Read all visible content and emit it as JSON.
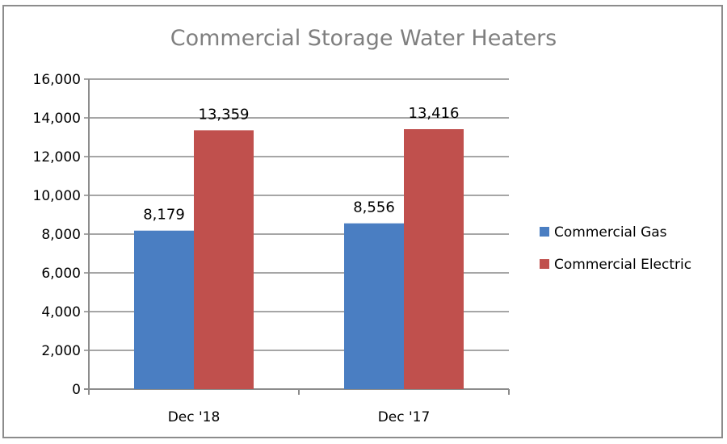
{
  "chart_data": {
    "type": "bar",
    "title": "Commercial Storage Water Heaters",
    "categories": [
      "Dec '18",
      "Dec '17"
    ],
    "series": [
      {
        "name": "Commercial Gas",
        "values": [
          8179,
          8556
        ],
        "labels": [
          "8,179",
          "8,556"
        ],
        "color": "#4a7ec2"
      },
      {
        "name": "Commercial Electric",
        "values": [
          13359,
          13416
        ],
        "labels": [
          "13,359",
          "13,416"
        ],
        "color": "#c0504d"
      }
    ],
    "ylim": [
      0,
      16000
    ],
    "yticks": [
      0,
      2000,
      4000,
      6000,
      8000,
      10000,
      12000,
      14000,
      16000
    ],
    "ytick_labels": [
      "0",
      "2,000",
      "4,000",
      "6,000",
      "8,000",
      "10,000",
      "12,000",
      "14,000",
      "16,000"
    ],
    "xlabel": "",
    "ylabel": "",
    "grid": true,
    "legend": "right"
  }
}
